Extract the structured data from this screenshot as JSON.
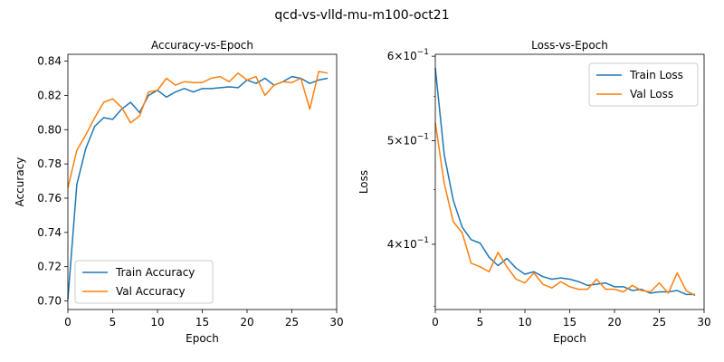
{
  "figure": {
    "suptitle": "qcd-vs-vlld-mu-m100-oct21"
  },
  "chart_data": [
    {
      "type": "line",
      "title": "Accuracy-vs-Epoch",
      "xlabel": "Epoch",
      "ylabel": "Accuracy",
      "xlim": [
        0,
        30
      ],
      "ylim": [
        0.695,
        0.844
      ],
      "yscale": "linear",
      "xticks": [
        0,
        5,
        10,
        15,
        20,
        25,
        30
      ],
      "yticks": [
        0.7,
        0.72,
        0.74,
        0.76,
        0.78,
        0.8,
        0.82,
        0.84
      ],
      "ytick_labels": [
        "0.70",
        "0.72",
        "0.74",
        "0.76",
        "0.78",
        "0.80",
        "0.82",
        "0.84"
      ],
      "grid": false,
      "legend_loc": "lower-left",
      "x": [
        0,
        1,
        2,
        3,
        4,
        5,
        6,
        7,
        8,
        9,
        10,
        11,
        12,
        13,
        14,
        15,
        16,
        17,
        18,
        19,
        20,
        21,
        22,
        23,
        24,
        25,
        26,
        27,
        28,
        29
      ],
      "series": [
        {
          "name": "Train Accuracy",
          "color": "#1f77b4",
          "values": [
            0.701,
            0.768,
            0.789,
            0.802,
            0.807,
            0.806,
            0.812,
            0.816,
            0.81,
            0.82,
            0.823,
            0.819,
            0.822,
            0.824,
            0.822,
            0.824,
            0.824,
            0.8245,
            0.825,
            0.8245,
            0.829,
            0.827,
            0.83,
            0.826,
            0.828,
            0.831,
            0.83,
            0.827,
            0.829,
            0.83
          ]
        },
        {
          "name": "Val Accuracy",
          "color": "#ff7f0e",
          "values": [
            0.766,
            0.788,
            0.797,
            0.807,
            0.816,
            0.818,
            0.813,
            0.804,
            0.808,
            0.822,
            0.823,
            0.83,
            0.826,
            0.828,
            0.8275,
            0.8275,
            0.83,
            0.831,
            0.828,
            0.833,
            0.829,
            0.831,
            0.82,
            0.826,
            0.828,
            0.8275,
            0.83,
            0.812,
            0.834,
            0.833
          ]
        }
      ]
    },
    {
      "type": "line",
      "title": "Loss-vs-Epoch",
      "xlabel": "Epoch",
      "ylabel": "Loss",
      "xlim": [
        0,
        30
      ],
      "ylim": [
        0.3475,
        0.6025
      ],
      "yscale": "log",
      "xticks": [
        0,
        5,
        10,
        15,
        20,
        25,
        30
      ],
      "yticks": [
        0.4,
        0.5,
        0.6
      ],
      "ytick_labels": [
        {
          "base": "4",
          "exp": "−1"
        },
        {
          "base": "5",
          "exp": "−1"
        },
        {
          "base": "6",
          "exp": "−1"
        }
      ],
      "grid": false,
      "legend_loc": "upper-right",
      "x": [
        0,
        1,
        2,
        3,
        4,
        5,
        6,
        7,
        8,
        9,
        10,
        11,
        12,
        13,
        14,
        15,
        16,
        17,
        18,
        19,
        20,
        21,
        22,
        23,
        24,
        25,
        26,
        27,
        28,
        29
      ],
      "series": [
        {
          "name": "Train Loss",
          "color": "#1f77b4",
          "values": [
            0.585,
            0.485,
            0.44,
            0.415,
            0.404,
            0.401,
            0.389,
            0.382,
            0.388,
            0.38,
            0.375,
            0.377,
            0.373,
            0.371,
            0.372,
            0.371,
            0.369,
            0.366,
            0.367,
            0.368,
            0.365,
            0.365,
            0.362,
            0.363,
            0.36,
            0.361,
            0.361,
            0.362,
            0.359,
            0.359
          ]
        },
        {
          "name": "Val Loss",
          "color": "#ff7f0e",
          "values": [
            0.52,
            0.456,
            0.42,
            0.41,
            0.384,
            0.381,
            0.377,
            0.393,
            0.381,
            0.371,
            0.368,
            0.376,
            0.367,
            0.364,
            0.369,
            0.365,
            0.363,
            0.363,
            0.371,
            0.363,
            0.363,
            0.361,
            0.366,
            0.362,
            0.361,
            0.368,
            0.36,
            0.376,
            0.362,
            0.358
          ]
        }
      ]
    }
  ]
}
